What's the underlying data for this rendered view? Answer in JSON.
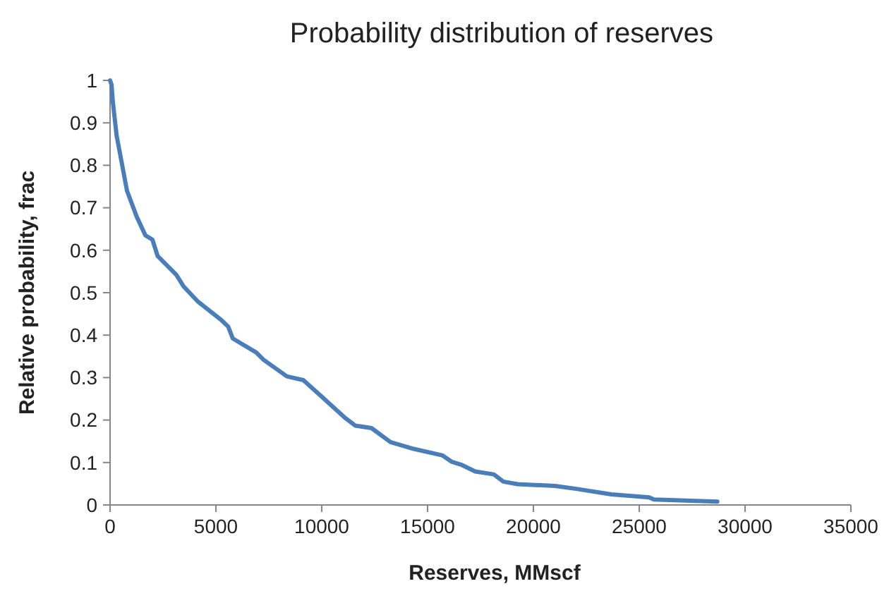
{
  "chart_data": {
    "type": "line",
    "title": "Probability distribution of reserves",
    "xlabel": "Reserves, MMscf",
    "ylabel": "Relative probability, frac",
    "x": [
      0,
      70,
      130,
      310,
      800,
      1250,
      1670,
      2000,
      2250,
      3130,
      3470,
      4130,
      5250,
      5580,
      5800,
      6910,
      7250,
      8350,
      9130,
      9910,
      11130,
      11580,
      12350,
      13250,
      14350,
      15690,
      16130,
      16580,
      17250,
      18130,
      18580,
      19250,
      21020,
      22020,
      23690,
      25470,
      25690,
      28690
    ],
    "series": [
      {
        "color": "#4a7ebb",
        "values": [
          1,
          0.99,
          0.95,
          0.87,
          0.74,
          0.68,
          0.635,
          0.625,
          0.586,
          0.542,
          0.515,
          0.48,
          0.436,
          0.42,
          0.392,
          0.359,
          0.342,
          0.303,
          0.294,
          0.259,
          0.204,
          0.187,
          0.181,
          0.148,
          0.132,
          0.117,
          0.102,
          0.095,
          0.079,
          0.072,
          0.055,
          0.049,
          0.045,
          0.038,
          0.025,
          0.018,
          0.013,
          0.008
        ]
      }
    ],
    "xlim": [
      0,
      35000
    ],
    "xticks": [
      0,
      5000,
      10000,
      15000,
      20000,
      25000,
      30000,
      35000
    ],
    "ylim": [
      0,
      1
    ],
    "yticks": [
      0,
      0.1,
      0.2,
      0.3,
      0.4,
      0.5,
      0.6,
      0.7,
      0.8,
      0.9,
      1
    ],
    "marker": "none",
    "line_style": "solid"
  }
}
